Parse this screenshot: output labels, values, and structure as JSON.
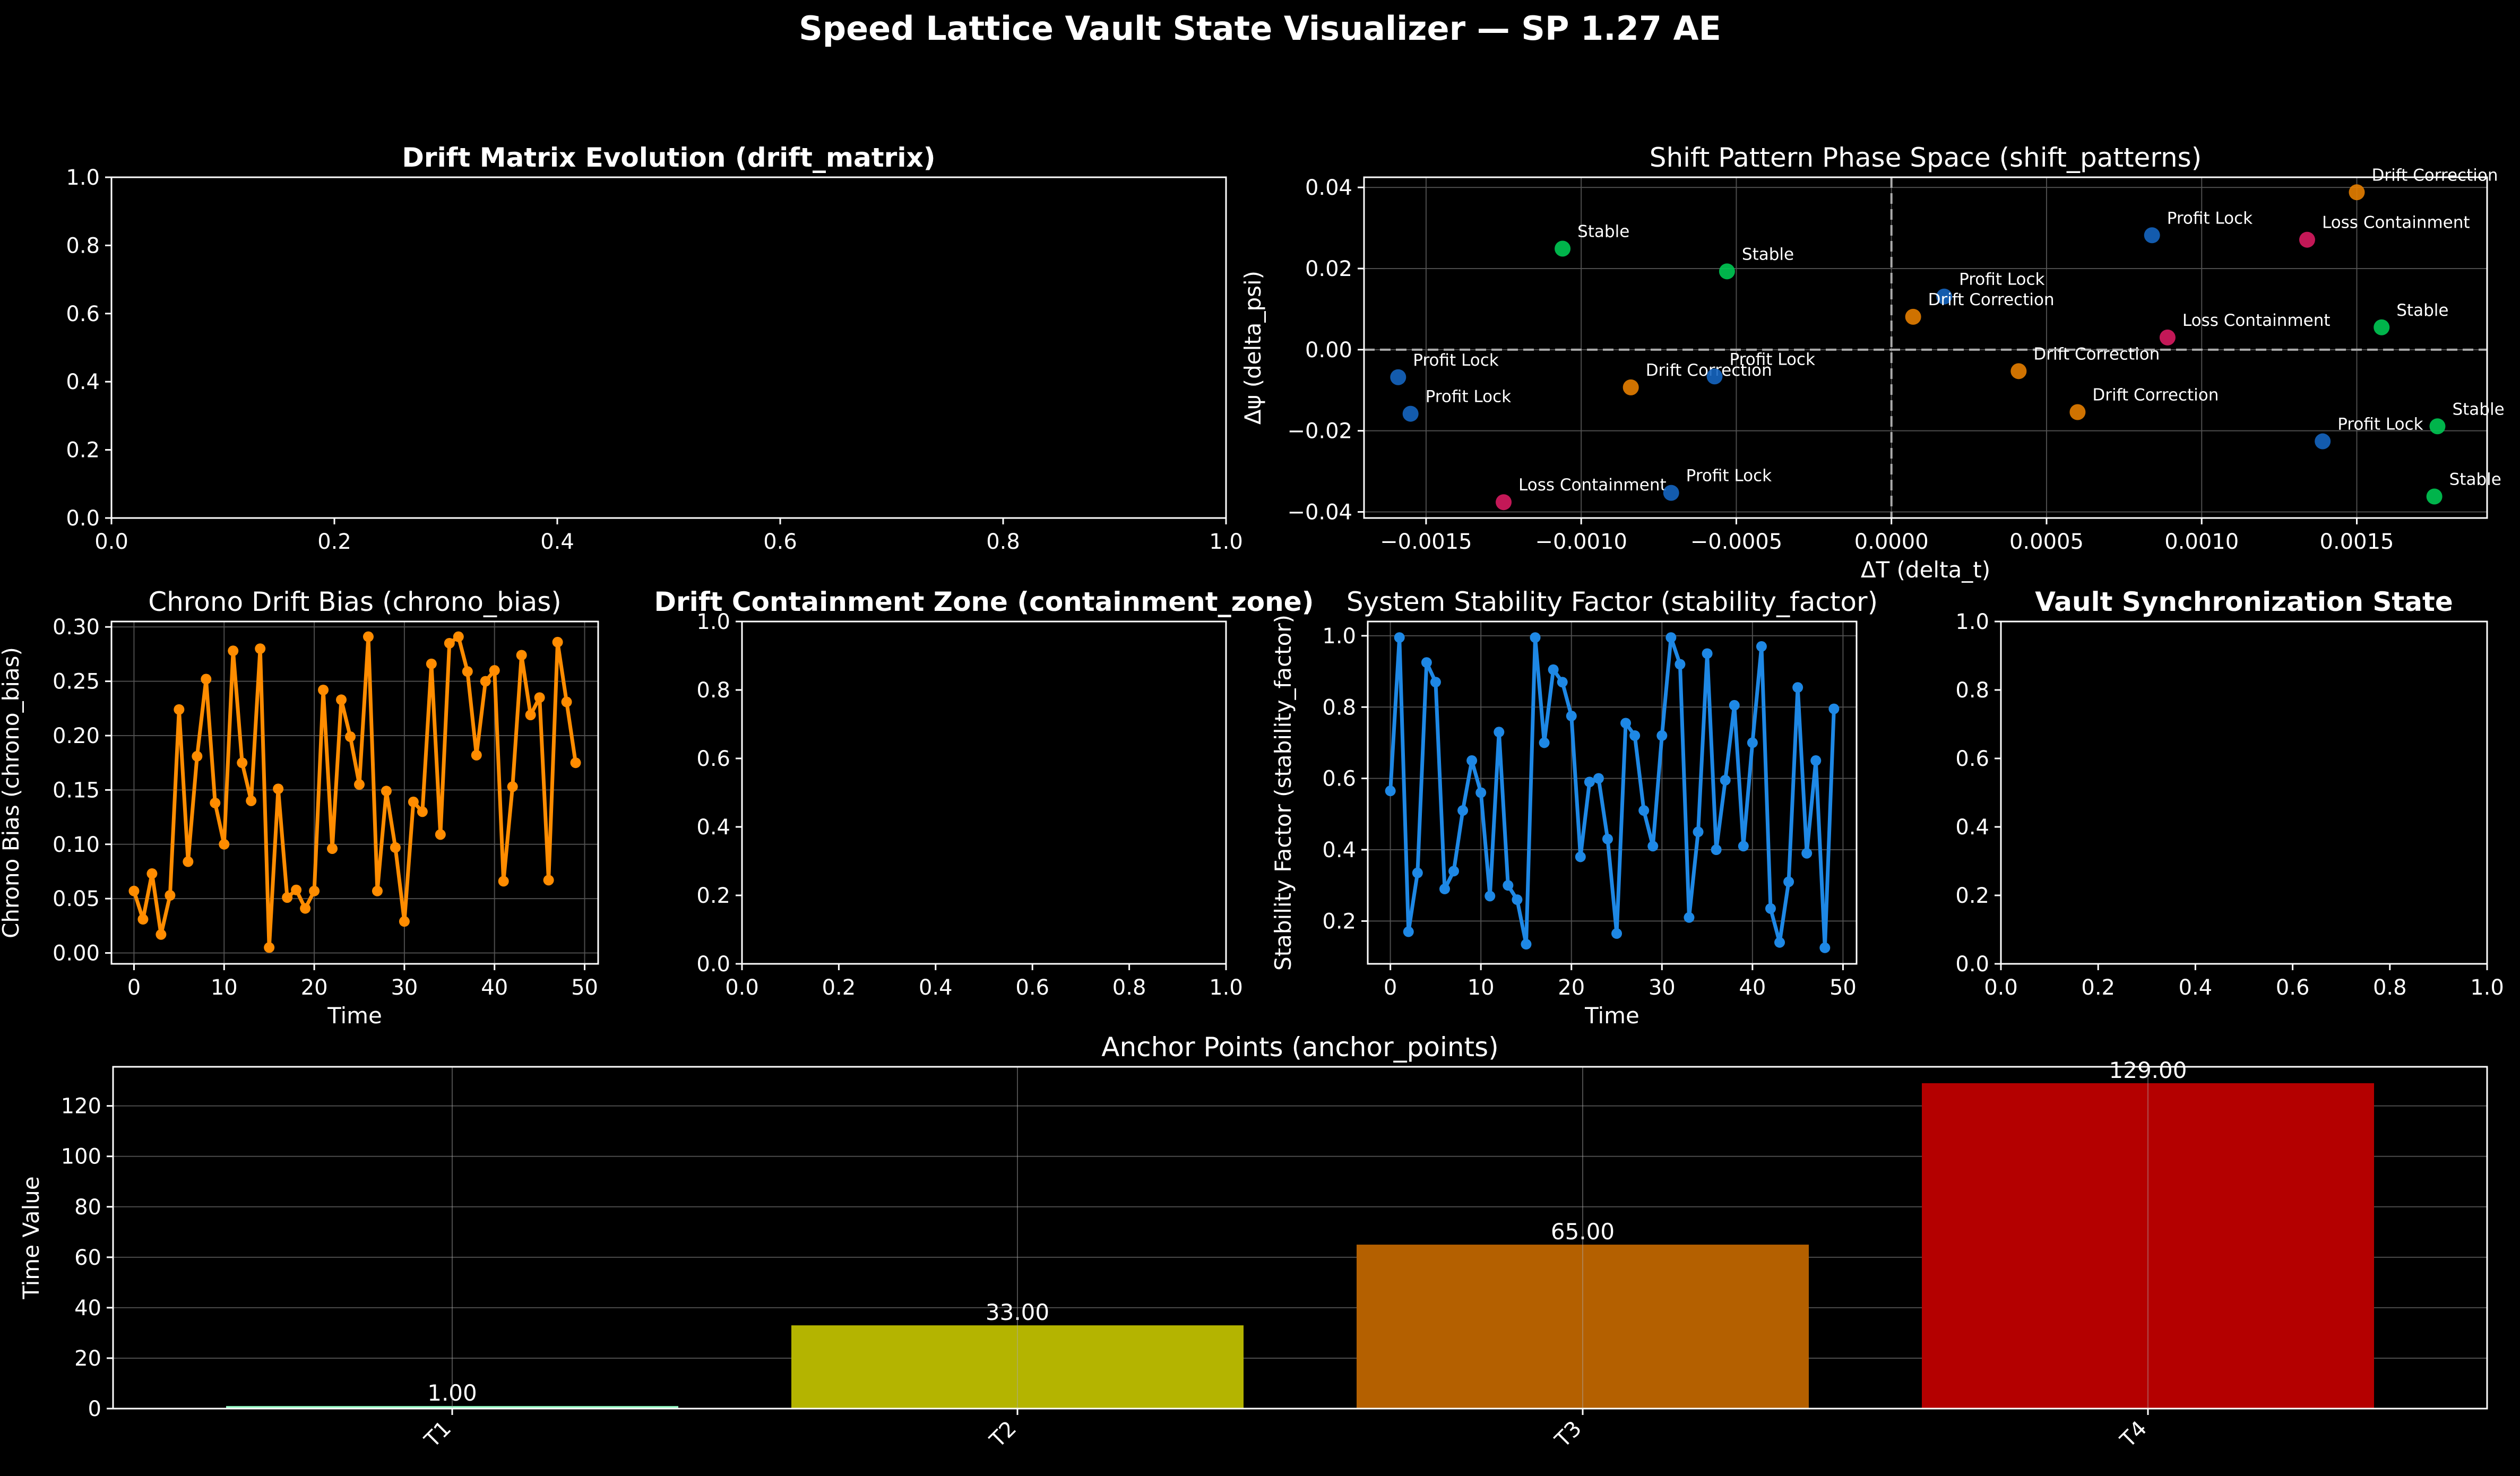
{
  "figure": {
    "suptitle": "Speed Lattice Vault State Visualizer — SP 1.27 AE"
  },
  "colors": {
    "background": "#000000",
    "axes_edge": "#ffffff",
    "grid": "#555555",
    "profit_lock": "#1565c0",
    "stable": "#00c853",
    "drift_correction": "#e67e00",
    "loss_containment": "#d81b60",
    "chrono_line": "#ff8c00",
    "stability_line": "#1e88e5"
  },
  "chart_data": [
    {
      "id": "drift_matrix",
      "type": "heatmap",
      "title": "Drift Matrix Evolution (drift_matrix)",
      "title_bold": true,
      "xlim": [
        0,
        1
      ],
      "ylim": [
        0,
        1
      ],
      "xticks": [
        "0.0",
        "0.2",
        "0.4",
        "0.6",
        "0.8",
        "1.0"
      ],
      "yticks": [
        "0.0",
        "0.2",
        "0.4",
        "0.6",
        "0.8",
        "1.0"
      ],
      "grid": false,
      "values": []
    },
    {
      "id": "shift_patterns",
      "type": "scatter",
      "title": "Shift Pattern Phase Space (shift_patterns)",
      "title_bold": false,
      "xlabel": "ΔT (delta_t)",
      "ylabel": "Δψ (delta_psi)",
      "xlim": [
        -0.0017,
        0.00192
      ],
      "ylim": [
        -0.0415,
        0.0425
      ],
      "xticks": [
        -0.0015,
        -0.001,
        -0.0005,
        0,
        0.0005,
        0.001,
        0.0015
      ],
      "xtick_labels": [
        "−0.0015",
        "−0.0010",
        "−0.0005",
        "0.0000",
        "0.0005",
        "0.0010",
        "0.0015"
      ],
      "yticks": [
        -0.04,
        -0.02,
        0,
        0.02,
        0.04
      ],
      "ytick_labels": [
        "−0.04",
        "−0.02",
        "0.00",
        "0.02",
        "0.04"
      ],
      "grid": true,
      "reference_lines": {
        "x": 0,
        "y": 0
      },
      "points": [
        {
          "x": -0.00159,
          "y": -0.0068,
          "label": "Profit Lock",
          "category": "profit_lock"
        },
        {
          "x": -0.00155,
          "y": -0.0158,
          "label": "Profit Lock",
          "category": "profit_lock"
        },
        {
          "x": -0.00106,
          "y": 0.0249,
          "label": "Stable",
          "category": "stable"
        },
        {
          "x": -0.00053,
          "y": 0.0193,
          "label": "Stable",
          "category": "stable"
        },
        {
          "x": -0.00125,
          "y": -0.0376,
          "label": "Loss Containment",
          "category": "loss_containment"
        },
        {
          "x": -0.00084,
          "y": -0.0093,
          "label": "Drift Correction",
          "category": "drift_correction"
        },
        {
          "x": -0.00057,
          "y": -0.0066,
          "label": "Profit Lock",
          "category": "profit_lock"
        },
        {
          "x": -0.00071,
          "y": -0.0353,
          "label": "Profit Lock",
          "category": "profit_lock"
        },
        {
          "x": 0.00017,
          "y": 0.0131,
          "label": "Profit Lock",
          "category": "profit_lock"
        },
        {
          "x": 7e-05,
          "y": 0.0081,
          "label": "Drift Correction",
          "category": "drift_correction"
        },
        {
          "x": 0.00041,
          "y": -0.0053,
          "label": "Drift Correction",
          "category": "drift_correction"
        },
        {
          "x": 0.0006,
          "y": -0.0154,
          "label": "Drift Correction",
          "category": "drift_correction"
        },
        {
          "x": 0.00084,
          "y": 0.0282,
          "label": "Profit Lock",
          "category": "profit_lock"
        },
        {
          "x": 0.00089,
          "y": 0.003,
          "label": "Loss Containment",
          "category": "loss_containment"
        },
        {
          "x": 0.00134,
          "y": 0.0271,
          "label": "Loss Containment",
          "category": "loss_containment"
        },
        {
          "x": 0.0015,
          "y": 0.0388,
          "label": "Drift Correction",
          "category": "drift_correction"
        },
        {
          "x": 0.00158,
          "y": 0.0055,
          "label": "Stable",
          "category": "stable"
        },
        {
          "x": 0.00139,
          "y": -0.0226,
          "label": "Profit Lock",
          "category": "profit_lock"
        },
        {
          "x": 0.00176,
          "y": -0.0189,
          "label": "Stable",
          "category": "stable"
        },
        {
          "x": 0.00175,
          "y": -0.0362,
          "label": "Stable",
          "category": "stable"
        }
      ]
    },
    {
      "id": "chrono_bias",
      "type": "line",
      "title": "Chrono Drift Bias (chrono_bias)",
      "title_bold": false,
      "xlabel": "Time",
      "ylabel": "Chrono Bias (chrono_bias)",
      "xlim": [
        -2.5,
        51.5
      ],
      "ylim": [
        -0.01,
        0.305
      ],
      "xticks": [
        0,
        10,
        20,
        30,
        40,
        50
      ],
      "xtick_labels": [
        "0",
        "10",
        "20",
        "30",
        "40",
        "50"
      ],
      "yticks": [
        0,
        0.05,
        0.1,
        0.15,
        0.2,
        0.25,
        0.3
      ],
      "ytick_labels": [
        "0.00",
        "0.05",
        "0.10",
        "0.15",
        "0.20",
        "0.25",
        "0.30"
      ],
      "grid": true,
      "color_key": "chrono_line",
      "x": [
        0,
        1,
        2,
        3,
        4,
        5,
        6,
        7,
        8,
        9,
        10,
        11,
        12,
        13,
        14,
        15,
        16,
        17,
        18,
        19,
        20,
        21,
        22,
        23,
        24,
        25,
        26,
        27,
        28,
        29,
        30,
        31,
        32,
        33,
        34,
        35,
        36,
        37,
        38,
        39,
        40,
        41,
        42,
        43,
        44,
        45,
        46,
        47,
        48,
        49
      ],
      "values": [
        0.057,
        0.031,
        0.073,
        0.017,
        0.053,
        0.224,
        0.084,
        0.181,
        0.252,
        0.138,
        0.1,
        0.278,
        0.175,
        0.14,
        0.28,
        0.005,
        0.151,
        0.051,
        0.058,
        0.041,
        0.057,
        0.242,
        0.096,
        0.233,
        0.199,
        0.155,
        0.291,
        0.057,
        0.149,
        0.097,
        0.029,
        0.139,
        0.13,
        0.266,
        0.109,
        0.285,
        0.291,
        0.259,
        0.182,
        0.25,
        0.26,
        0.066,
        0.153,
        0.274,
        0.219,
        0.235,
        0.067,
        0.286,
        0.231,
        0.175
      ]
    },
    {
      "id": "containment_zone",
      "type": "heatmap",
      "title": "Drift Containment Zone (containment_zone)",
      "title_bold": true,
      "xlim": [
        0,
        1
      ],
      "ylim": [
        0,
        1
      ],
      "xticks": [
        "0.0",
        "0.2",
        "0.4",
        "0.6",
        "0.8",
        "1.0"
      ],
      "yticks": [
        "0.0",
        "0.2",
        "0.4",
        "0.6",
        "0.8",
        "1.0"
      ],
      "grid": false,
      "values": []
    },
    {
      "id": "stability_factor",
      "type": "line",
      "title": "System Stability Factor (stability_factor)",
      "title_bold": false,
      "xlabel": "Time",
      "ylabel": "Stability Factor (stability_factor)",
      "xlim": [
        -2.5,
        51.5
      ],
      "ylim": [
        0.08,
        1.04
      ],
      "xticks": [
        0,
        10,
        20,
        30,
        40,
        50
      ],
      "xtick_labels": [
        "0",
        "10",
        "20",
        "30",
        "40",
        "50"
      ],
      "yticks": [
        0.2,
        0.4,
        0.6,
        0.8,
        1.0
      ],
      "ytick_labels": [
        "0.2",
        "0.4",
        "0.6",
        "0.8",
        "1.0"
      ],
      "grid": true,
      "color_key": "stability_line",
      "x": [
        0,
        1,
        2,
        3,
        4,
        5,
        6,
        7,
        8,
        9,
        10,
        11,
        12,
        13,
        14,
        15,
        16,
        17,
        18,
        19,
        20,
        21,
        22,
        23,
        24,
        25,
        26,
        27,
        28,
        29,
        30,
        31,
        32,
        33,
        34,
        35,
        36,
        37,
        38,
        39,
        40,
        41,
        42,
        43,
        44,
        45,
        46,
        47,
        48,
        49
      ],
      "values": [
        0.565,
        0.995,
        0.17,
        0.335,
        0.925,
        0.87,
        0.29,
        0.34,
        0.51,
        0.65,
        0.56,
        0.27,
        0.73,
        0.3,
        0.26,
        0.135,
        0.995,
        0.7,
        0.905,
        0.87,
        0.775,
        0.38,
        0.59,
        0.6,
        0.43,
        0.165,
        0.755,
        0.72,
        0.51,
        0.41,
        0.72,
        0.995,
        0.92,
        0.21,
        0.45,
        0.95,
        0.4,
        0.595,
        0.805,
        0.41,
        0.7,
        0.97,
        0.235,
        0.14,
        0.31,
        0.855,
        0.39,
        0.65,
        0.125,
        0.795
      ]
    },
    {
      "id": "vault_sync",
      "type": "heatmap",
      "title": "Vault Synchronization State",
      "title_bold": true,
      "xlim": [
        0,
        1
      ],
      "ylim": [
        0,
        1
      ],
      "xticks": [
        "0.0",
        "0.2",
        "0.4",
        "0.6",
        "0.8",
        "1.0"
      ],
      "yticks": [
        "0.0",
        "0.2",
        "0.4",
        "0.6",
        "0.8",
        "1.0"
      ],
      "grid": false,
      "values": []
    },
    {
      "id": "anchor_points",
      "type": "bar",
      "title": "Anchor Points (anchor_points)",
      "title_bold": false,
      "xlabel": "",
      "ylabel": "Time Value",
      "ylim": [
        0,
        135.5
      ],
      "yticks": [
        0,
        20,
        40,
        60,
        80,
        100,
        120
      ],
      "ytick_labels": [
        "0",
        "20",
        "40",
        "60",
        "80",
        "100",
        "120"
      ],
      "grid": true,
      "categories": [
        "T1",
        "T2",
        "T3",
        "T4"
      ],
      "values": [
        1.0,
        33.0,
        65.0,
        129.0
      ],
      "value_labels": [
        "1.00",
        "33.00",
        "65.00",
        "129.00"
      ],
      "bar_colors": [
        "#98ffc8",
        "#b4b400",
        "#b46000",
        "#b40000"
      ]
    }
  ]
}
